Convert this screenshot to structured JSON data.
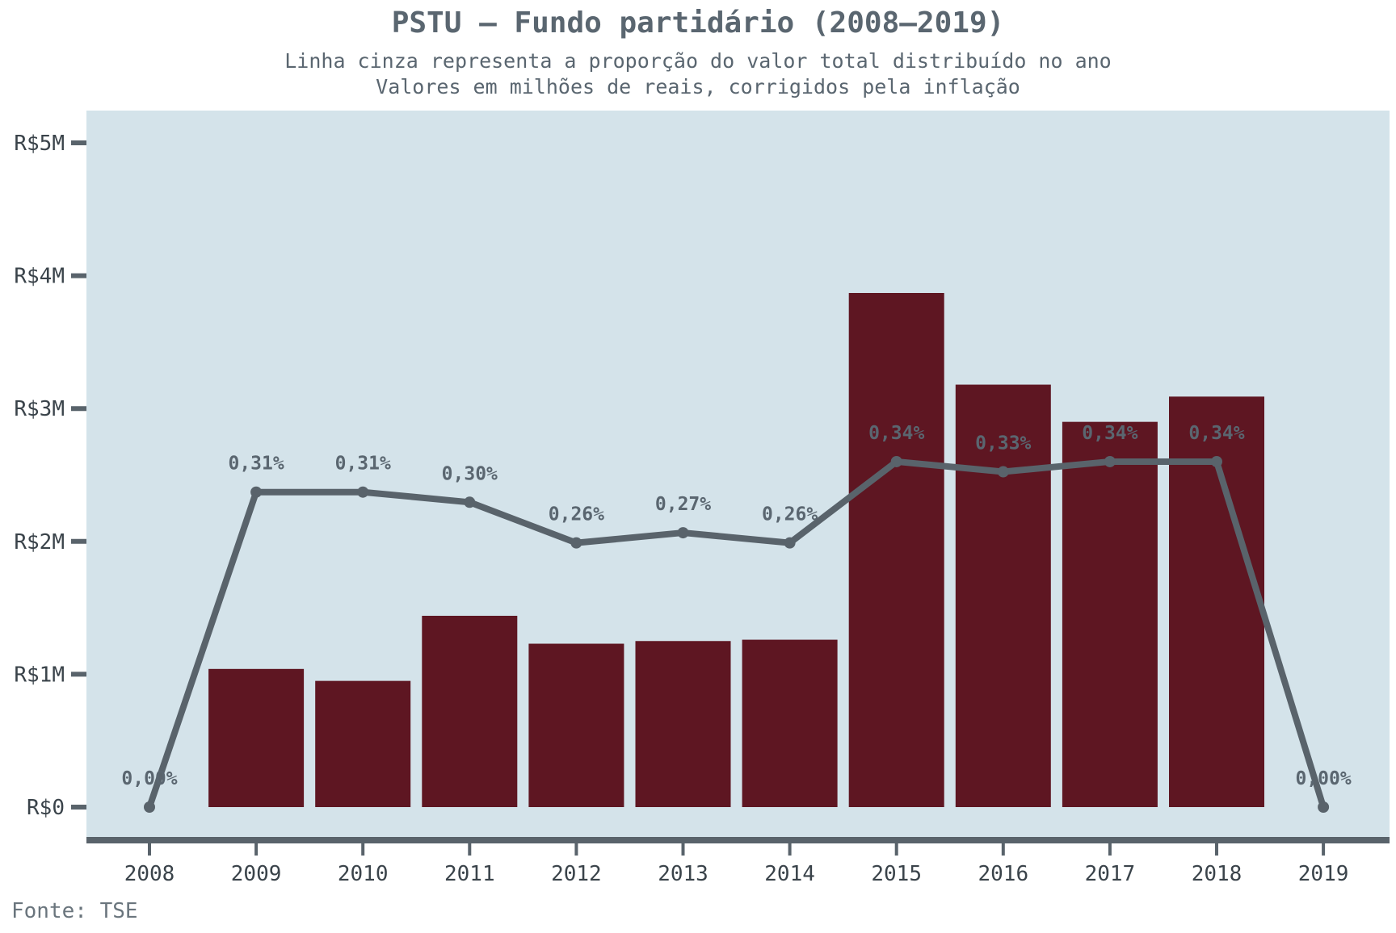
{
  "chart_data": {
    "type": "bar",
    "title": "PSTU – Fundo partidário (2008–2019)",
    "subtitle_lines": [
      "Linha cinza representa a proporção do valor total distribuído no ano",
      "Valores em milhões de reais, corrigidos pela inflação"
    ],
    "source": "Fonte: TSE",
    "categories": [
      "2008",
      "2009",
      "2010",
      "2011",
      "2012",
      "2013",
      "2014",
      "2015",
      "2016",
      "2017",
      "2018",
      "2019"
    ],
    "series": [
      {
        "kind": "bar",
        "values": [
          0,
          1.04,
          0.95,
          1.44,
          1.23,
          1.25,
          1.26,
          3.87,
          3.18,
          2.9,
          3.09,
          0
        ],
        "color": "#5e1622"
      },
      {
        "kind": "line",
        "values": [
          0.0,
          0.31,
          0.31,
          0.3,
          0.26,
          0.27,
          0.26,
          0.34,
          0.33,
          0.34,
          0.34,
          0.0
        ],
        "labels": [
          "0,00%",
          "0,31%",
          "0,31%",
          "0,30%",
          "0,26%",
          "0,27%",
          "0,26%",
          "0,34%",
          "0,33%",
          "0,34%",
          "0,34%",
          "0,00%"
        ],
        "color": "#59636b"
      }
    ],
    "y_ticks": [
      {
        "value": 0,
        "label": "R$0"
      },
      {
        "value": 1,
        "label": "R$1M"
      },
      {
        "value": 2,
        "label": "R$2M"
      },
      {
        "value": 3,
        "label": "R$3M"
      },
      {
        "value": 4,
        "label": "R$4M"
      },
      {
        "value": 5,
        "label": "R$5M"
      }
    ],
    "ylim": [
      0,
      5
    ],
    "grid": false,
    "colors": {
      "panel_bg": "#d4e3ea",
      "axis": "#59636b"
    }
  }
}
